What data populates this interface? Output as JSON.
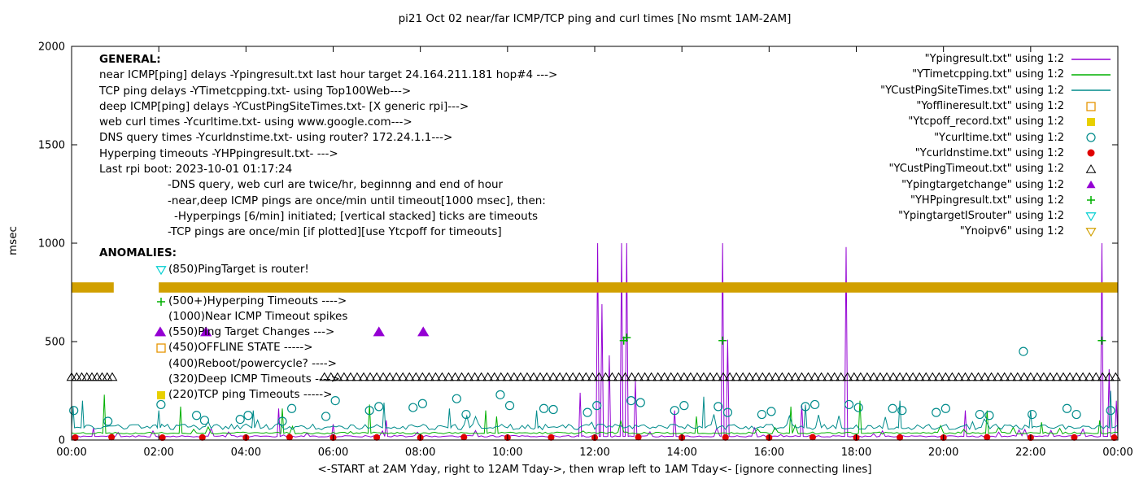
{
  "title": "pi21 Oct 02  near/far ICMP/TCP ping and curl times [No msmt 1AM-2AM]",
  "ylabel": "msec",
  "xlabel": "<-START at 2AM Yday, right to 12AM Tday->, then wrap left to 1AM Tday<- [ignore connecting lines]",
  "colors": {
    "purple": "#9400d3",
    "green": "#00b000",
    "teal": "#008b8b",
    "orange": "#e69500",
    "yellow": "#e8d000",
    "red": "#e00000",
    "black": "#000000",
    "cyan": "#00ced1",
    "gold": "#d1a000"
  },
  "legend": [
    {
      "label": "\"Ypingresult.txt\" using 1:2",
      "marker": "line",
      "color": "#9400d3"
    },
    {
      "label": "\"YTimetcpping.txt\" using 1:2",
      "marker": "line",
      "color": "#00b000"
    },
    {
      "label": "\"YCustPingSiteTimes.txt\" using 1:2",
      "marker": "line",
      "color": "#008b8b"
    },
    {
      "label": "\"Yofflineresult.txt\" using 1:2",
      "marker": "square-open",
      "color": "#e69500"
    },
    {
      "label": "\"Ytcpoff_record.txt\" using 1:2",
      "marker": "square-filled",
      "color": "#e8d000"
    },
    {
      "label": "\"Ycurltime.txt\" using 1:2",
      "marker": "circle-open",
      "color": "#008b8b"
    },
    {
      "label": "\"Ycurldnstime.txt\" using 1:2",
      "marker": "circle-filled",
      "color": "#e00000"
    },
    {
      "label": "\"YCustPingTimeout.txt\" using 1:2",
      "marker": "triangle-open",
      "color": "#000000"
    },
    {
      "label": "\"Ypingtargetchange\" using 1:2",
      "marker": "triangle-filled",
      "color": "#9400d3"
    },
    {
      "label": "\"YHPpingresult.txt\" using 1:2",
      "marker": "plus",
      "color": "#00b000"
    },
    {
      "label": "\"YpingtargetISrouter\" using 1:2",
      "marker": "triangle-down-open",
      "color": "#00ced1"
    },
    {
      "label": "\"Ynoipv6\" using 1:2",
      "marker": "triangle-down-open",
      "color": "#d1a000"
    }
  ],
  "general": {
    "header": "GENERAL:",
    "lines": [
      {
        "text": "near ICMP[ping] delays -Ypingresult.txt last hour target 24.164.211.181 hop#4 --->",
        "indent": 0
      },
      {
        "text": "TCP ping delays -YTimetcpping.txt- using Top100Web--->",
        "indent": 0
      },
      {
        "text": "deep ICMP[ping] delays -YCustPingSiteTimes.txt- [X generic rpi]--->",
        "indent": 0
      },
      {
        "text": "web curl times -Ycurltime.txt- using www.google.com--->",
        "indent": 0
      },
      {
        "text": "DNS query times -Ycurldnstime.txt- using router? 172.24.1.1--->",
        "indent": 0
      },
      {
        "text": "Hyperping timeouts -YHPpingresult.txt- --->",
        "indent": 0
      },
      {
        "text": "Last rpi boot: 2023-10-01 01:17:24",
        "indent": 0
      },
      {
        "text": "-DNS query, web curl are twice/hr, beginnng and end of hour",
        "indent": 1
      },
      {
        "text": "-near,deep ICMP pings are once/min until timeout[1000 msec], then:",
        "indent": 1
      },
      {
        "text": "-Hyperpings [6/min] initiated; [vertical stacked] ticks are timeouts",
        "indent": 2
      },
      {
        "text": "-TCP pings are once/min [if plotted][use Ytcpoff for timeouts]",
        "indent": 1
      }
    ]
  },
  "anomalies": {
    "header": "ANOMALIES:",
    "entries": [
      {
        "marker": "triangle-down-open",
        "color": "#00ced1",
        "text": "(850)PingTarget is router!"
      },
      {
        "marker": "",
        "color": "",
        "text": ""
      },
      {
        "marker": "plus",
        "color": "#00b000",
        "text": "(500+)Hyperping Timeouts ---->"
      },
      {
        "marker": "",
        "color": "",
        "text": "(1000)Near ICMP Timeout spikes"
      },
      {
        "marker": "triangle-filled",
        "color": "#9400d3",
        "text": "(550)Ping Target Changes --->"
      },
      {
        "marker": "square-open",
        "color": "#e69500",
        "text": "(450)OFFLINE STATE ----->"
      },
      {
        "marker": "",
        "color": "",
        "text": "(400)Reboot/powercycle? ---->"
      },
      {
        "marker": "",
        "color": "",
        "text": "(320)Deep ICMP Timeouts ---->"
      },
      {
        "marker": "square-filled",
        "color": "#e8d000",
        "text": "(220)TCP ping Timeouts ----->"
      }
    ]
  },
  "chart_data": {
    "type": "line",
    "title": "pi21 Oct 02  near/far ICMP/TCP ping and curl times [No msmt 1AM-2AM]",
    "xlabel": "<-START at 2AM Yday, right to 12AM Tday->, then wrap left to 1AM Tday<- [ignore connecting lines]",
    "ylabel": "msec",
    "xlim": [
      0,
      1440
    ],
    "ylim": [
      0,
      2000
    ],
    "grid": false,
    "legend_position": "top-right-inside",
    "y_ticks": [
      0,
      500,
      1000,
      1500,
      2000
    ],
    "x_ticks": [
      {
        "minute": 0,
        "label": "00:00"
      },
      {
        "minute": 120,
        "label": "02:00"
      },
      {
        "minute": 240,
        "label": "04:00"
      },
      {
        "minute": 360,
        "label": "06:00"
      },
      {
        "minute": 480,
        "label": "08:00"
      },
      {
        "minute": 600,
        "label": "10:00"
      },
      {
        "minute": 720,
        "label": "12:00"
      },
      {
        "minute": 840,
        "label": "14:00"
      },
      {
        "minute": 960,
        "label": "16:00"
      },
      {
        "minute": 1080,
        "label": "18:00"
      },
      {
        "minute": 1200,
        "label": "20:00"
      },
      {
        "minute": 1320,
        "label": "22:00"
      },
      {
        "minute": 1440,
        "label": "00:00"
      }
    ],
    "series": [
      {
        "name": "Ypingresult",
        "color": "#9400d3",
        "baseline": 18,
        "jitter": 8,
        "seed": 11,
        "spikes": [
          [
            30,
            60
          ],
          [
            285,
            160
          ],
          [
            360,
            80
          ],
          [
            433,
            100
          ],
          [
            700,
            240
          ],
          [
            724,
            1000
          ],
          [
            730,
            690
          ],
          [
            740,
            430
          ],
          [
            757,
            1000
          ],
          [
            764,
            1000
          ],
          [
            776,
            300
          ],
          [
            830,
            150
          ],
          [
            896,
            1000
          ],
          [
            903,
            510
          ],
          [
            1005,
            180
          ],
          [
            1063,
            1000
          ],
          [
            1066,
            980
          ],
          [
            1230,
            150
          ],
          [
            1418,
            1000
          ],
          [
            1428,
            360
          ],
          [
            1438,
            200
          ]
        ]
      },
      {
        "name": "YTimetcpping",
        "color": "#00b000",
        "baseline": 34,
        "jitter": 10,
        "seed": 22,
        "spikes": [
          [
            45,
            230
          ],
          [
            150,
            170
          ],
          [
            290,
            160
          ],
          [
            410,
            180
          ],
          [
            570,
            150
          ],
          [
            585,
            120
          ],
          [
            860,
            120
          ],
          [
            990,
            170
          ],
          [
            1085,
            200
          ],
          [
            1260,
            150
          ],
          [
            1335,
            90
          ],
          [
            1415,
            100
          ]
        ]
      },
      {
        "name": "YCustPingSiteTimes",
        "color": "#008b8b",
        "baseline": 62,
        "jitter": 28,
        "seed": 33,
        "spikes": [
          [
            2,
            170
          ],
          [
            15,
            200
          ],
          [
            120,
            150
          ],
          [
            250,
            150
          ],
          [
            430,
            190
          ],
          [
            520,
            160
          ],
          [
            640,
            150
          ],
          [
            870,
            220
          ],
          [
            1010,
            180
          ],
          [
            1140,
            200
          ],
          [
            1320,
            150
          ],
          [
            1430,
            250
          ]
        ]
      }
    ],
    "markers": [
      {
        "name": "Ycurltime",
        "shape": "circle-open",
        "color": "#008b8b",
        "size": 5,
        "points": [
          [
            3,
            150
          ],
          [
            50,
            95
          ],
          [
            123,
            180
          ],
          [
            172,
            125
          ],
          [
            183,
            100
          ],
          [
            232,
            105
          ],
          [
            243,
            125
          ],
          [
            290,
            95
          ],
          [
            303,
            160
          ],
          [
            350,
            120
          ],
          [
            363,
            200
          ],
          [
            410,
            150
          ],
          [
            423,
            170
          ],
          [
            470,
            165
          ],
          [
            483,
            185
          ],
          [
            530,
            210
          ],
          [
            543,
            130
          ],
          [
            590,
            230
          ],
          [
            603,
            175
          ],
          [
            650,
            160
          ],
          [
            663,
            155
          ],
          [
            710,
            140
          ],
          [
            723,
            175
          ],
          [
            770,
            200
          ],
          [
            783,
            190
          ],
          [
            830,
            150
          ],
          [
            843,
            175
          ],
          [
            890,
            170
          ],
          [
            903,
            140
          ],
          [
            950,
            130
          ],
          [
            963,
            145
          ],
          [
            1010,
            170
          ],
          [
            1023,
            180
          ],
          [
            1070,
            180
          ],
          [
            1083,
            165
          ],
          [
            1130,
            160
          ],
          [
            1143,
            150
          ],
          [
            1190,
            140
          ],
          [
            1203,
            160
          ],
          [
            1250,
            130
          ],
          [
            1263,
            125
          ],
          [
            1310,
            450
          ],
          [
            1322,
            130
          ],
          [
            1370,
            160
          ],
          [
            1383,
            130
          ],
          [
            1430,
            150
          ]
        ]
      },
      {
        "name": "Ycurldnstime",
        "shape": "circle-filled",
        "color": "#e00000",
        "size": 4.5,
        "points": [
          [
            5,
            12
          ],
          [
            55,
            14
          ],
          [
            125,
            12
          ],
          [
            180,
            13
          ],
          [
            240,
            12
          ],
          [
            300,
            14
          ],
          [
            360,
            12
          ],
          [
            420,
            13
          ],
          [
            480,
            12
          ],
          [
            540,
            14
          ],
          [
            600,
            12
          ],
          [
            660,
            13
          ],
          [
            720,
            12
          ],
          [
            780,
            14
          ],
          [
            840,
            12
          ],
          [
            900,
            13
          ],
          [
            960,
            12
          ],
          [
            1020,
            14
          ],
          [
            1080,
            12
          ],
          [
            1140,
            13
          ],
          [
            1200,
            12
          ],
          [
            1260,
            14
          ],
          [
            1320,
            12
          ],
          [
            1380,
            13
          ],
          [
            1435,
            12
          ]
        ]
      },
      {
        "name": "Ypingtargetchange",
        "shape": "triangle-filled",
        "color": "#9400d3",
        "size": 6.5,
        "points": [
          [
            122,
            550
          ],
          [
            185,
            550
          ],
          [
            423,
            550
          ],
          [
            484,
            550
          ]
        ]
      },
      {
        "name": "YHPpingresult",
        "shape": "plus",
        "color": "#00b000",
        "size": 5,
        "points": [
          [
            760,
            505
          ],
          [
            764,
            520
          ],
          [
            896,
            505
          ],
          [
            1418,
            505
          ]
        ]
      }
    ],
    "timeout_row": {
      "name": "YCustPingTimeout",
      "shape": "triangle-open",
      "color": "#000000",
      "size": 5,
      "y": 320,
      "ranges": [
        [
          0,
          62,
          7
        ],
        [
          348,
          1440,
          9
        ]
      ]
    },
    "band": {
      "name": "Ynoipv6",
      "color": "#d1a000",
      "y": 775,
      "half": 26,
      "segments": [
        [
          0,
          58
        ],
        [
          120,
          1440
        ]
      ]
    }
  }
}
